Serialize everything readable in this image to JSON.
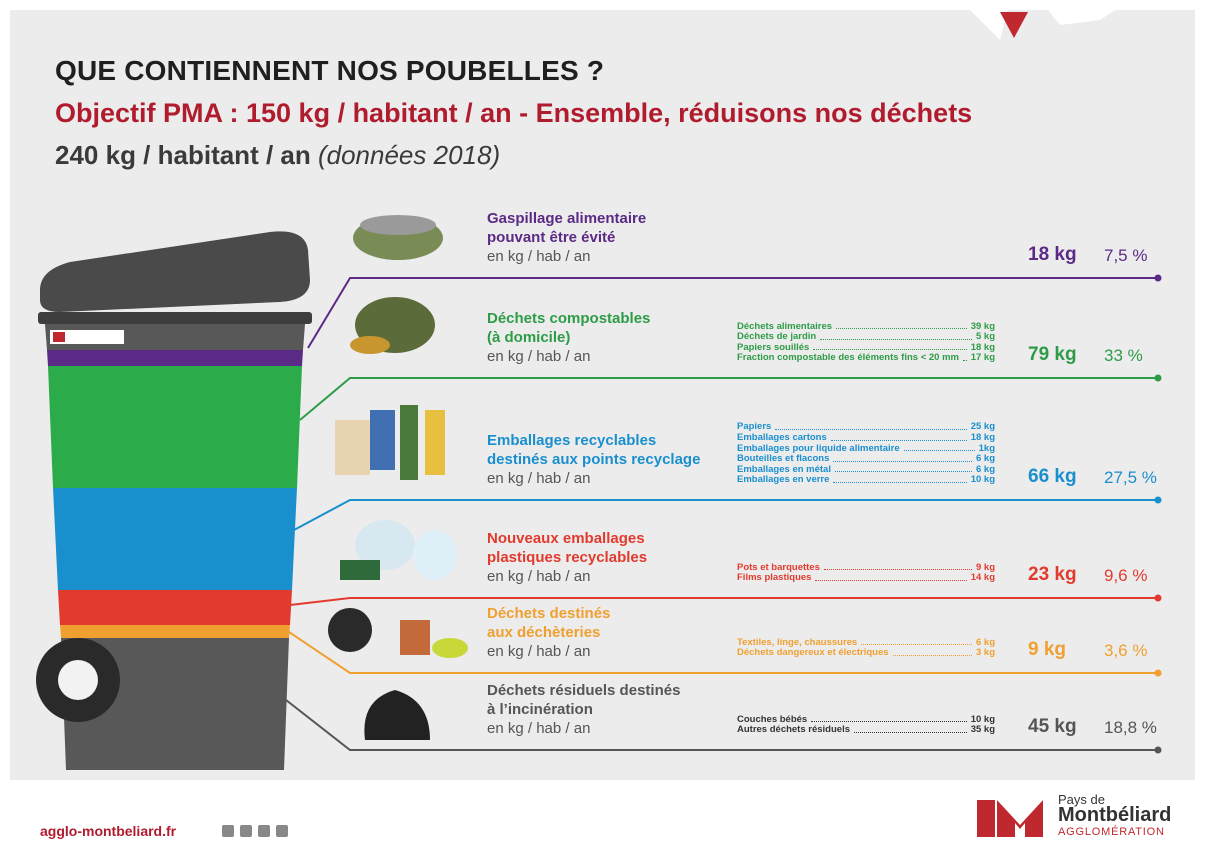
{
  "header": {
    "title": "QUE CONTIENNENT NOS POUBELLES ?",
    "objective": "Objectif PMA : 150 kg / habitant / an - Ensemble, réduisons nos déchets",
    "total": "240 kg / habitant / an",
    "year_note": "(données 2018)"
  },
  "rows": [
    {
      "name": [
        "Gaspillage alimentaire",
        "pouvant être évité"
      ],
      "unit": "en kg / hab / an",
      "details": [],
      "total": "18 kg",
      "percent": "7,5 %"
    },
    {
      "name": [
        "Déchets compostables",
        "(à domicile)"
      ],
      "unit": "en kg / hab / an",
      "details": [
        {
          "label": "Déchets alimentaires",
          "value": "39 kg"
        },
        {
          "label": "Déchets de jardin",
          "value": "5 kg"
        },
        {
          "label": "Papiers souillés",
          "value": "18 kg"
        },
        {
          "label": "Fraction compostable des éléments fins < 20 mm",
          "value": "17 kg"
        }
      ],
      "total": "79 kg",
      "percent": "33 %"
    },
    {
      "name": [
        "Emballages recyclables",
        "destinés aux points recyclage"
      ],
      "unit": "en kg / hab / an",
      "details": [
        {
          "label": "Papiers",
          "value": "25 kg"
        },
        {
          "label": "Emballages cartons",
          "value": "18 kg"
        },
        {
          "label": "Emballages pour liquide alimentaire",
          "value": "1kg"
        },
        {
          "label": "Bouteilles et flacons",
          "value": "6 kg"
        },
        {
          "label": "Emballages en métal",
          "value": "6 kg"
        },
        {
          "label": "Emballages en verre",
          "value": "10 kg"
        }
      ],
      "total": "66 kg",
      "percent": "27,5 %"
    },
    {
      "name": [
        "Nouveaux emballages",
        "plastiques recyclables"
      ],
      "unit": "en kg / hab / an",
      "details": [
        {
          "label": "Pots et barquettes",
          "value": "9 kg"
        },
        {
          "label": "Films plastiques",
          "value": "14 kg"
        }
      ],
      "total": "23 kg",
      "percent": "9,6 %"
    },
    {
      "name": [
        "Déchets destinés",
        "aux déchèteries"
      ],
      "unit": "en kg / hab / an",
      "details": [
        {
          "label": "Textiles, linge, chaussures",
          "value": "6 kg"
        },
        {
          "label": "Déchets dangereux et électriques",
          "value": "3 kg"
        }
      ],
      "total": "9 kg",
      "percent": "3,6 %"
    },
    {
      "name": [
        "Déchets résiduels destinés",
        "à l’incinération"
      ],
      "unit": "en kg / hab / an",
      "details": [
        {
          "label": "Couches bébés",
          "value": "10 kg"
        },
        {
          "label": "Autres déchets résiduels",
          "value": "35 kg"
        }
      ],
      "total": "45 kg",
      "percent": "18,8 %"
    }
  ],
  "footer": {
    "url": "agglo-montbeliard.fr",
    "logo": [
      "Pays de",
      "Montbéliard",
      "AGGLOMÉRATION"
    ]
  }
}
